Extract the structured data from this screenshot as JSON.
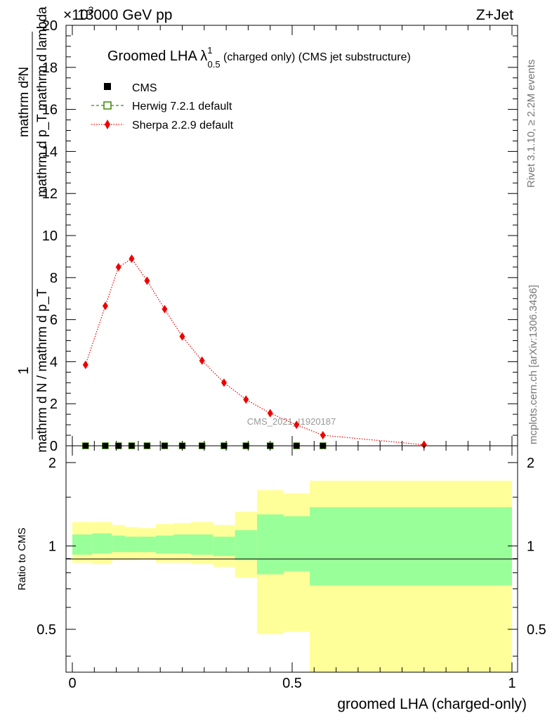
{
  "header": {
    "energy_label": "13000 GeV pp",
    "process_label": "Z+Jet",
    "exponent_label": "×10",
    "exponent_power": "3"
  },
  "side_labels": {
    "rivet": "Rivet 3.1.10, ≥ 2.2M events",
    "mcplots": "mcplots.cern.ch [arXiv:1306.3436]"
  },
  "watermark": "CMS_2021_I1920187",
  "plot_title": {
    "main": "Groomed LHA λ",
    "sup": "1",
    "sub": "0.5",
    "rest": " (charged only) (CMS jet substructure)"
  },
  "legend": [
    {
      "label": "CMS",
      "marker": "square",
      "color": "#000000"
    },
    {
      "label": "Herwig 7.2.1 default",
      "marker": "open-square-dashed",
      "color": "#3a8a00"
    },
    {
      "label": "Sherpa 2.2.9 default",
      "marker": "diamond-dotted",
      "color": "#ee0000"
    }
  ],
  "y_axis_label": {
    "numerator": "1",
    "fraction_top": "mathrm d²N",
    "fraction_bottom": "mathrm d p_T mathrm d lambda",
    "denominator": "mathrm d N / mathrm d p_T"
  },
  "x_axis_label": "groomed LHA (charged-only)",
  "ratio_y_label": "Ratio to CMS",
  "colors": {
    "sherpa": "#ee0000",
    "herwig": "#3a8a00",
    "band_outer": "#ffff99",
    "band_inner": "#99ff99"
  },
  "chart_data": {
    "type": "line",
    "main": {
      "y_scale_factor": 1000,
      "ylim": [
        0,
        20
      ],
      "xlim": [
        0,
        1
      ],
      "y_ticks": [
        "0",
        "2",
        "4",
        "6",
        "8",
        "10",
        "12",
        "14",
        "16",
        "18",
        "20"
      ],
      "series": [
        {
          "name": "CMS",
          "x": [
            0.03,
            0.075,
            0.105,
            0.135,
            0.17,
            0.21,
            0.25,
            0.295,
            0.345,
            0.395,
            0.45,
            0.51,
            0.57
          ],
          "y": [
            0,
            0,
            0,
            0,
            0,
            0,
            0,
            0,
            0,
            0,
            0,
            0,
            0
          ]
        },
        {
          "name": "Herwig 7.2.1 default",
          "x": [
            0.03,
            0.075,
            0.105,
            0.135,
            0.17,
            0.21,
            0.25,
            0.295,
            0.345,
            0.395,
            0.45,
            0.51,
            0.57
          ],
          "y": [
            0,
            0,
            0,
            0,
            0,
            0,
            0,
            0,
            0,
            0,
            0,
            0,
            0
          ]
        },
        {
          "name": "Sherpa 2.2.9 default",
          "x": [
            0.03,
            0.075,
            0.105,
            0.135,
            0.17,
            0.21,
            0.25,
            0.295,
            0.345,
            0.395,
            0.45,
            0.51,
            0.57,
            0.8
          ],
          "y": [
            3.85,
            6.65,
            8.5,
            8.9,
            7.85,
            6.5,
            5.2,
            4.05,
            3.0,
            2.2,
            1.55,
            1.0,
            0.5,
            0.05
          ]
        }
      ]
    },
    "ratio": {
      "ylim": [
        0.35,
        2.3
      ],
      "y_scale": "log",
      "y_ticks": [
        {
          "value": 0.5,
          "label": "0.5"
        },
        {
          "value": 1,
          "label": "1"
        },
        {
          "value": 2,
          "label": "2"
        }
      ],
      "x_ticks": [
        {
          "value": 0,
          "label": "0"
        },
        {
          "value": 0.5,
          "label": "0.5"
        },
        {
          "value": 1,
          "label": "1"
        }
      ],
      "bins": [
        {
          "x0": 0.0,
          "x1": 0.045,
          "in_lo": 0.93,
          "in_hi": 1.1,
          "out_lo": 0.87,
          "out_hi": 1.22
        },
        {
          "x0": 0.045,
          "x1": 0.09,
          "in_lo": 0.94,
          "in_hi": 1.11,
          "out_lo": 0.86,
          "out_hi": 1.22
        },
        {
          "x0": 0.09,
          "x1": 0.12,
          "in_lo": 0.95,
          "in_hi": 1.09,
          "out_lo": 0.89,
          "out_hi": 1.19
        },
        {
          "x0": 0.12,
          "x1": 0.15,
          "in_lo": 0.95,
          "in_hi": 1.08,
          "out_lo": 0.89,
          "out_hi": 1.17
        },
        {
          "x0": 0.15,
          "x1": 0.19,
          "in_lo": 0.95,
          "in_hi": 1.08,
          "out_lo": 0.9,
          "out_hi": 1.16
        },
        {
          "x0": 0.19,
          "x1": 0.23,
          "in_lo": 0.94,
          "in_hi": 1.09,
          "out_lo": 0.87,
          "out_hi": 1.2
        },
        {
          "x0": 0.23,
          "x1": 0.27,
          "in_lo": 0.94,
          "in_hi": 1.1,
          "out_lo": 0.87,
          "out_hi": 1.21
        },
        {
          "x0": 0.27,
          "x1": 0.32,
          "in_lo": 0.93,
          "in_hi": 1.1,
          "out_lo": 0.86,
          "out_hi": 1.22
        },
        {
          "x0": 0.32,
          "x1": 0.37,
          "in_lo": 0.92,
          "in_hi": 1.08,
          "out_lo": 0.84,
          "out_hi": 1.19
        },
        {
          "x0": 0.37,
          "x1": 0.42,
          "in_lo": 0.89,
          "in_hi": 1.14,
          "out_lo": 0.77,
          "out_hi": 1.33
        },
        {
          "x0": 0.42,
          "x1": 0.48,
          "in_lo": 0.79,
          "in_hi": 1.3,
          "out_lo": 0.48,
          "out_hi": 1.59
        },
        {
          "x0": 0.48,
          "x1": 0.54,
          "in_lo": 0.81,
          "in_hi": 1.28,
          "out_lo": 0.49,
          "out_hi": 1.55
        },
        {
          "x0": 0.54,
          "x1": 1.0,
          "in_lo": 0.72,
          "in_hi": 1.38,
          "out_lo": 0.35,
          "out_hi": 1.72
        }
      ]
    }
  }
}
